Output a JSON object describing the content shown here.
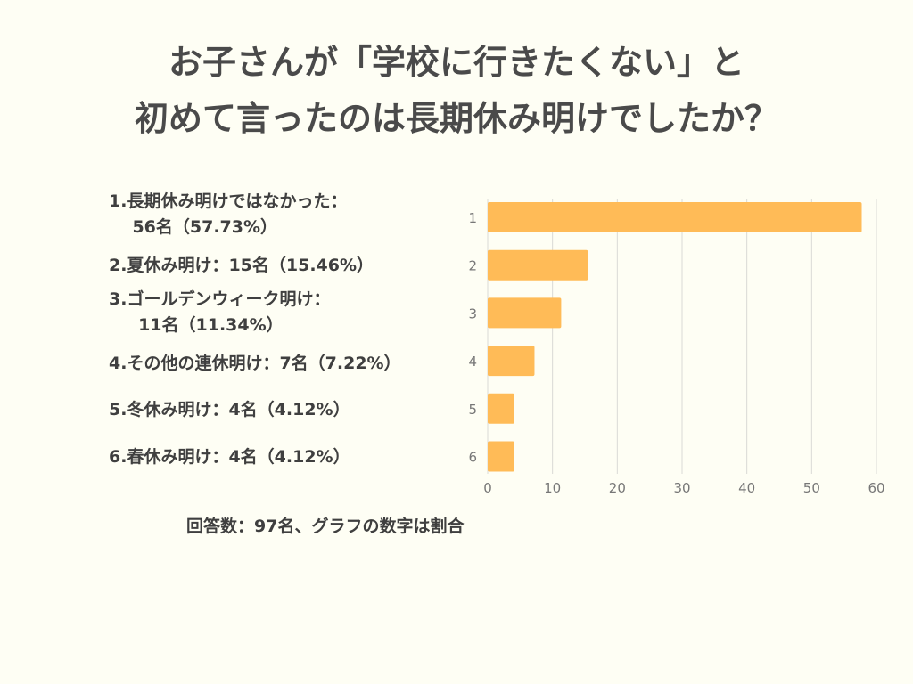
{
  "title_lines": [
    "お子さんが「学校に行きたくない」と",
    "初めて言ったのは長期休み明けでしたか？"
  ],
  "labels": [
    "1.長期休み明けではなかった：\n    56名（57.73%）",
    "2.夏休み明け：15名（15.46%）",
    "3.ゴールデンウィーク明け：\n     11名（11.34%）",
    "4.その他の連休明け：7名（7.22%）",
    "5.冬休み明け：4名（4.12%）",
    "6.春休み明け：4名（4.12%）"
  ],
  "note": "回答数：97名、グラフの数字は割合",
  "chart_data": {
    "type": "bar",
    "orientation": "horizontal",
    "categories": [
      "1",
      "2",
      "3",
      "4",
      "5",
      "6"
    ],
    "values": [
      57.73,
      15.46,
      11.34,
      7.22,
      4.12,
      4.12
    ],
    "xlim": [
      0,
      60
    ],
    "xticks": [
      "0",
      "10",
      "20",
      "30",
      "40",
      "50",
      "60"
    ],
    "grid": true,
    "bar_color": "#ffbb57",
    "grid_color": "#d9d9d6"
  }
}
